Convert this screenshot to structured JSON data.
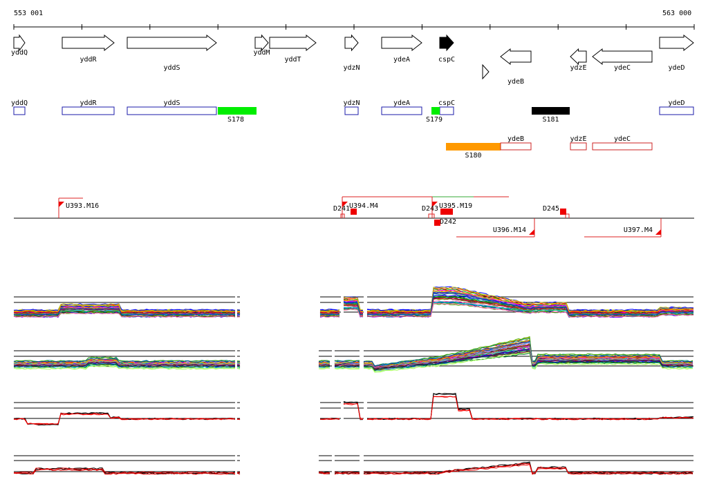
{
  "coords": {
    "start": "553 001",
    "end": "563 000"
  },
  "genes": [
    {
      "name": "yddQ",
      "x1": 20,
      "x2": 36,
      "dir": "r",
      "row": 0,
      "fill": "none"
    },
    {
      "name": "yddR",
      "x1": 90,
      "x2": 165,
      "dir": "r",
      "row": 0,
      "fill": "none"
    },
    {
      "name": "yddS",
      "x1": 184,
      "x2": 313,
      "dir": "r",
      "row": 0,
      "fill": "none"
    },
    {
      "name": "yddM",
      "x1": 369,
      "x2": 388,
      "dir": "r",
      "row": 0,
      "fill": "none"
    },
    {
      "name": "yddT",
      "x1": 390,
      "x2": 457,
      "dir": "r",
      "row": 0,
      "fill": "none"
    },
    {
      "name": "ydzN",
      "x1": 499,
      "x2": 518,
      "dir": "r",
      "row": 0,
      "fill": "none"
    },
    {
      "name": "ydeA",
      "x1": 552,
      "x2": 610,
      "dir": "r",
      "row": 0,
      "fill": "none"
    },
    {
      "name": "cspC",
      "x1": 636,
      "x2": 656,
      "dir": "r",
      "row": 0,
      "fill": "#000000"
    },
    {
      "name": "ydeD",
      "x1": 954,
      "x2": 1003,
      "dir": "r",
      "row": 0,
      "fill": "none"
    },
    {
      "name": "ydeB",
      "x1": 724,
      "x2": 768,
      "dir": "l",
      "row": 1,
      "fill": "none"
    },
    {
      "name": "ydzE",
      "x1": 825,
      "x2": 848,
      "dir": "l",
      "row": 1,
      "fill": "none"
    },
    {
      "name": "ydeC",
      "x1": 857,
      "x2": 943,
      "dir": "l",
      "row": 1,
      "fill": "none"
    }
  ],
  "smallTriangle": {
    "x": 698
  },
  "blueFeatures": [
    {
      "name": "yddQ",
      "x1": 20,
      "x2": 36
    },
    {
      "name": "yddR",
      "x1": 90,
      "x2": 165
    },
    {
      "name": "yddS",
      "x1": 184,
      "x2": 313
    },
    {
      "name": "ydzN",
      "x1": 499,
      "x2": 518
    },
    {
      "name": "ydeA",
      "x1": 552,
      "x2": 610
    },
    {
      "name": "cspC",
      "x1": 636,
      "x2": 656
    },
    {
      "name": "ydeD",
      "x1": 954,
      "x2": 1003
    }
  ],
  "sBlocks": [
    {
      "name": "S178",
      "x1": 315,
      "x2": 371,
      "color": "#00ee00",
      "row": 0
    },
    {
      "name": "S179",
      "x1": 624,
      "x2": 636,
      "color": "#00ee00",
      "row": 0
    },
    {
      "name": "S181",
      "x1": 769,
      "x2": 824,
      "color": "#000000",
      "row": 0
    },
    {
      "name": "S180",
      "x1": 645,
      "x2": 724,
      "color": "#ff9900",
      "row": 1
    }
  ],
  "redFeatures": [
    {
      "name": "ydeB",
      "x1": 724,
      "x2": 768
    },
    {
      "name": "ydzE",
      "x1": 825,
      "x2": 848
    },
    {
      "name": "ydeC",
      "x1": 857,
      "x2": 943
    }
  ],
  "upLabels": [
    {
      "name": "U393.M16",
      "x": 85,
      "spanEnd": 120
    },
    {
      "name": "U394.M4",
      "x": 495,
      "spanEnd": 736
    },
    {
      "name": "U395.M19",
      "x": 625,
      "spanEnd": 685
    }
  ],
  "downLabels": [
    {
      "name": "U396.M14",
      "x": 773,
      "spanStart": 660
    },
    {
      "name": "U397.M4",
      "x": 956,
      "spanStart": 845
    }
  ],
  "dLabels": [
    {
      "name": "D241",
      "x": 482,
      "y": 305
    },
    {
      "name": "D243",
      "x": 610,
      "y": 305
    },
    {
      "name": "D242",
      "x": 636,
      "y": 324
    },
    {
      "name": "D245",
      "x": 785,
      "y": 305
    }
  ],
  "panels": [
    {
      "id": "p1",
      "top": 430,
      "ticks": [
        430,
        438,
        452
      ],
      "kind": "multi",
      "n": 34
    },
    {
      "id": "p2",
      "top": 508,
      "ticks": [
        508,
        516,
        530
      ],
      "kind": "multi",
      "n": 40
    },
    {
      "id": "p3",
      "top": 583,
      "ticks": [
        583,
        591,
        606
      ],
      "kind": "pair"
    },
    {
      "id": "p4",
      "top": 660,
      "ticks": [
        660,
        667,
        683
      ],
      "kind": "pair"
    }
  ]
}
